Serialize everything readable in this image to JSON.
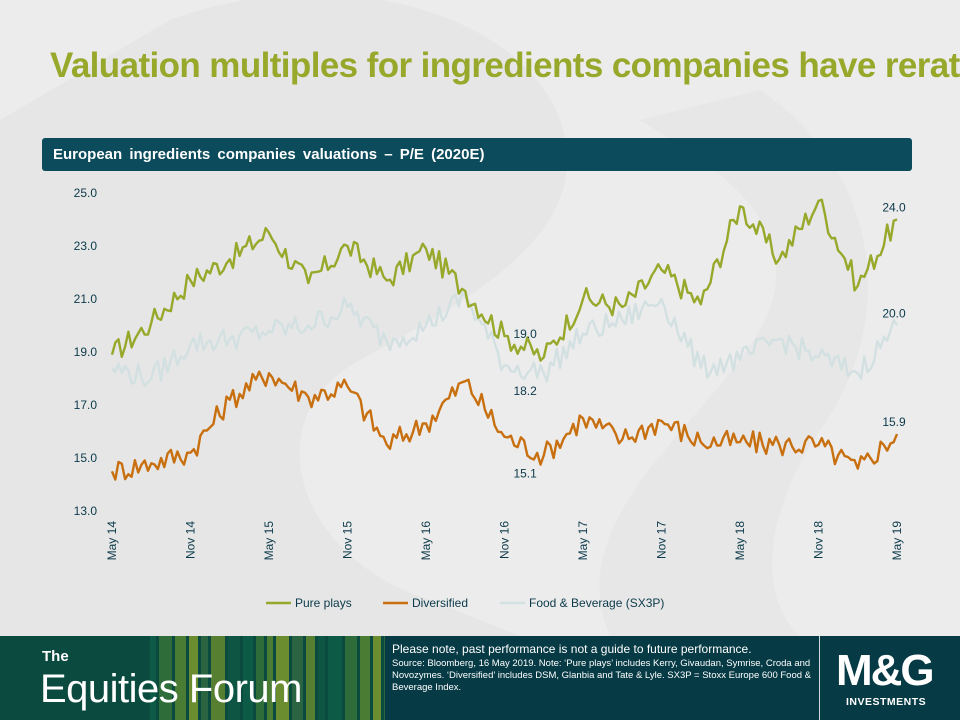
{
  "title": "Valuation multiples for ingredients companies have rerated",
  "chart_header": "European ingredients  companies  valuations  – P/E (2020E)",
  "colors": {
    "pure_plays": "#98a82b",
    "diversified": "#c8700f",
    "food_beverage": "#d3e0e2",
    "header_bg": "#0b4b5b",
    "title": "#98a82b"
  },
  "chart_data": {
    "type": "line",
    "ylim": [
      13.0,
      25.0
    ],
    "yticks": [
      "25.0",
      "23.0",
      "21.0",
      "19.0",
      "17.0",
      "15.0",
      "13.0"
    ],
    "xlabels": [
      "May 14",
      "Nov 14",
      "May 15",
      "Nov 15",
      "May 16",
      "Nov 16",
      "May 17",
      "Nov 17",
      "May 18",
      "Nov 18",
      "May 19"
    ],
    "legend_position": "bottom",
    "series": [
      {
        "name": "Pure plays",
        "color": "#98a82b",
        "x": [
          0,
          0.5,
          1,
          1.5,
          2,
          2.5,
          3,
          3.5,
          4,
          4.5,
          5,
          5.5,
          6,
          6.5,
          7,
          7.5,
          8,
          8.5,
          9,
          9.5,
          10
        ],
        "values": [
          18.9,
          20.1,
          21.7,
          22.5,
          23.5,
          21.6,
          23.0,
          21.7,
          22.9,
          21.3,
          19.6,
          18.8,
          21.0,
          20.7,
          22.1,
          20.8,
          24.5,
          22.5,
          24.7,
          21.5,
          24.0
        ]
      },
      {
        "name": "Diversified",
        "color": "#c8700f",
        "x": [
          0,
          0.5,
          1,
          1.5,
          2,
          2.5,
          3,
          3.5,
          4,
          4.5,
          5,
          5.5,
          6,
          6.5,
          7,
          7.5,
          8,
          8.5,
          9,
          9.5,
          10
        ],
        "values": [
          14.5,
          14.8,
          15.2,
          17.2,
          18.2,
          17.3,
          17.7,
          15.5,
          16.3,
          17.9,
          15.8,
          15.1,
          16.5,
          15.7,
          16.4,
          15.6,
          15.6,
          15.5,
          15.5,
          14.6,
          15.9
        ]
      },
      {
        "name": "Food & Beverage (SX3P)",
        "color": "#d3e0e2",
        "x": [
          0,
          0.5,
          1,
          1.5,
          2,
          2.5,
          3,
          3.5,
          4,
          4.5,
          5,
          5.5,
          6,
          6.5,
          7,
          7.5,
          8,
          8.5,
          9,
          9.5,
          10
        ],
        "values": [
          18.4,
          18.0,
          19.3,
          19.5,
          19.8,
          20.0,
          20.7,
          19.4,
          20.0,
          21.1,
          18.5,
          18.2,
          19.7,
          20.2,
          21.0,
          18.4,
          18.7,
          19.5,
          18.8,
          18.2,
          20.0
        ]
      }
    ],
    "annotations": [
      {
        "text": "24.0",
        "x": 10,
        "y": 24.0
      },
      {
        "text": "20.0",
        "x": 10,
        "y": 20.0
      },
      {
        "text": "15.9",
        "x": 10,
        "y": 15.9
      },
      {
        "text": "19.0",
        "x": 5.25,
        "y": 19.0
      },
      {
        "text": "18.2",
        "x": 5.25,
        "y": 18.2
      },
      {
        "text": "15.1",
        "x": 5.25,
        "y": 15.1
      }
    ]
  },
  "legend": {
    "pure_plays": "Pure plays",
    "diversified": "Diversified",
    "food_beverage": "Food & Beverage (SX3P)"
  },
  "footer": {
    "the": "The",
    "brand": "Equities Forum",
    "note_lead": "Please note, past performance  is not a guide to future performance.",
    "note_body": "Source: Bloomberg, 16 May 2019. Note: ‘Pure plays’ includes Kerry, Givaudan, Symrise, Croda and Novozymes. ‘Diversified’ includes DSM, Glanbia and Tate & Lyle. SX3P = Stoxx Europe 600 Food & Beverage Index.",
    "logo": "M&G",
    "logo_sub": "INVESTMENTS"
  }
}
